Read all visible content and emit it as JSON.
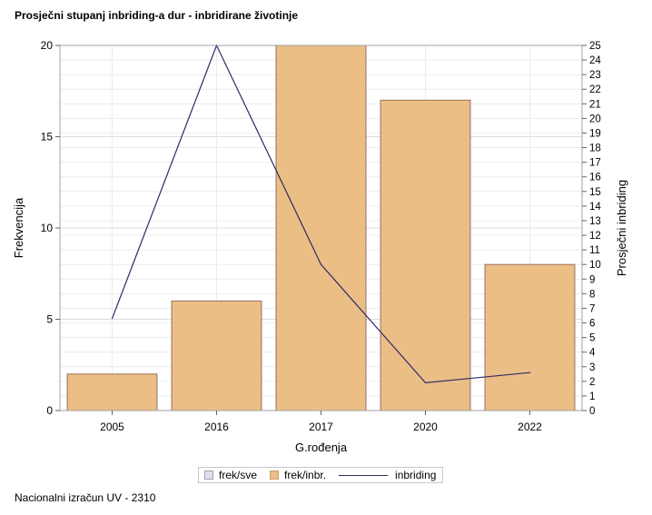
{
  "title": "Prosječni stupanj inbriding-a dur - inbridirane životinje",
  "footnote": "Nacionalni izračun UV - 2310",
  "chart_data": {
    "type": "bar",
    "categories": [
      "2005",
      "2016",
      "2017",
      "2020",
      "2022"
    ],
    "series": [
      {
        "name": "frek/inbr.",
        "type": "bar",
        "axis": "left",
        "color": "#ebbe86",
        "stroke": "#9a6f5e",
        "values": [
          2,
          6,
          20,
          17,
          8
        ]
      },
      {
        "name": "inbriding",
        "type": "line",
        "axis": "right",
        "color": "#2f2a66",
        "values": [
          6.3,
          25,
          10,
          1.9,
          2.6
        ]
      }
    ],
    "xlabel": "G.rođenja",
    "ylabel": "Frekvencija",
    "y2label": "Prosječni inbriding",
    "ylim": [
      0,
      20
    ],
    "y2lim": [
      0,
      25
    ],
    "yticks": [
      0,
      5,
      10,
      15,
      20
    ],
    "y2ticks": [
      0,
      1,
      2,
      3,
      4,
      5,
      6,
      7,
      8,
      9,
      10,
      11,
      12,
      13,
      14,
      15,
      16,
      17,
      18,
      19,
      20,
      21,
      22,
      23,
      24,
      25
    ],
    "grid": true,
    "legend": {
      "placement": "bottom",
      "items": [
        {
          "label": "frek/sve",
          "kind": "swatch",
          "color": "#dde0ec",
          "stroke": "#9aa0b8"
        },
        {
          "label": "frek/inbr.",
          "kind": "swatch",
          "color": "#ebbe86",
          "stroke": "#c9a070"
        },
        {
          "label": "inbriding",
          "kind": "line",
          "color": "#2f2a66"
        }
      ]
    }
  }
}
